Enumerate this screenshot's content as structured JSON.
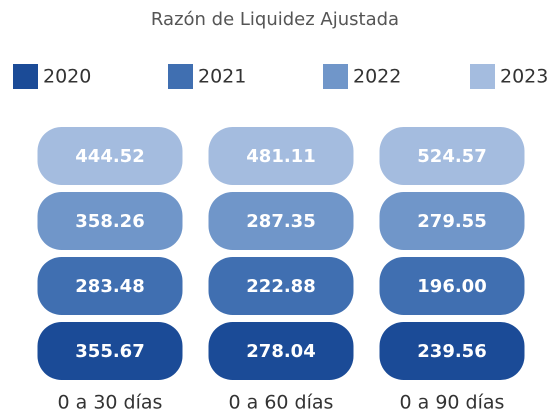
{
  "chart_data": {
    "type": "tiles",
    "title": "Razón de Liquidez Ajustada",
    "categories": [
      "0 a 30 días",
      "0 a 60 días",
      "0 a 90 días"
    ],
    "series": [
      {
        "name": "2020",
        "color": "#1b4b97",
        "values": [
          355.67,
          278.04,
          239.56
        ],
        "value_labels": [
          "355.67",
          "278.04",
          "239.56"
        ]
      },
      {
        "name": "2021",
        "color": "#406fb1",
        "values": [
          283.48,
          222.88,
          196.0
        ],
        "value_labels": [
          "283.48",
          "222.88",
          "196.00"
        ]
      },
      {
        "name": "2022",
        "color": "#7096c9",
        "values": [
          358.26,
          287.35,
          279.55
        ],
        "value_labels": [
          "358.26",
          "287.35",
          "279.55"
        ]
      },
      {
        "name": "2023",
        "color": "#a4bcdf",
        "values": [
          444.52,
          481.11,
          524.57
        ],
        "value_labels": [
          "444.52",
          "481.11",
          "524.57"
        ]
      }
    ]
  }
}
